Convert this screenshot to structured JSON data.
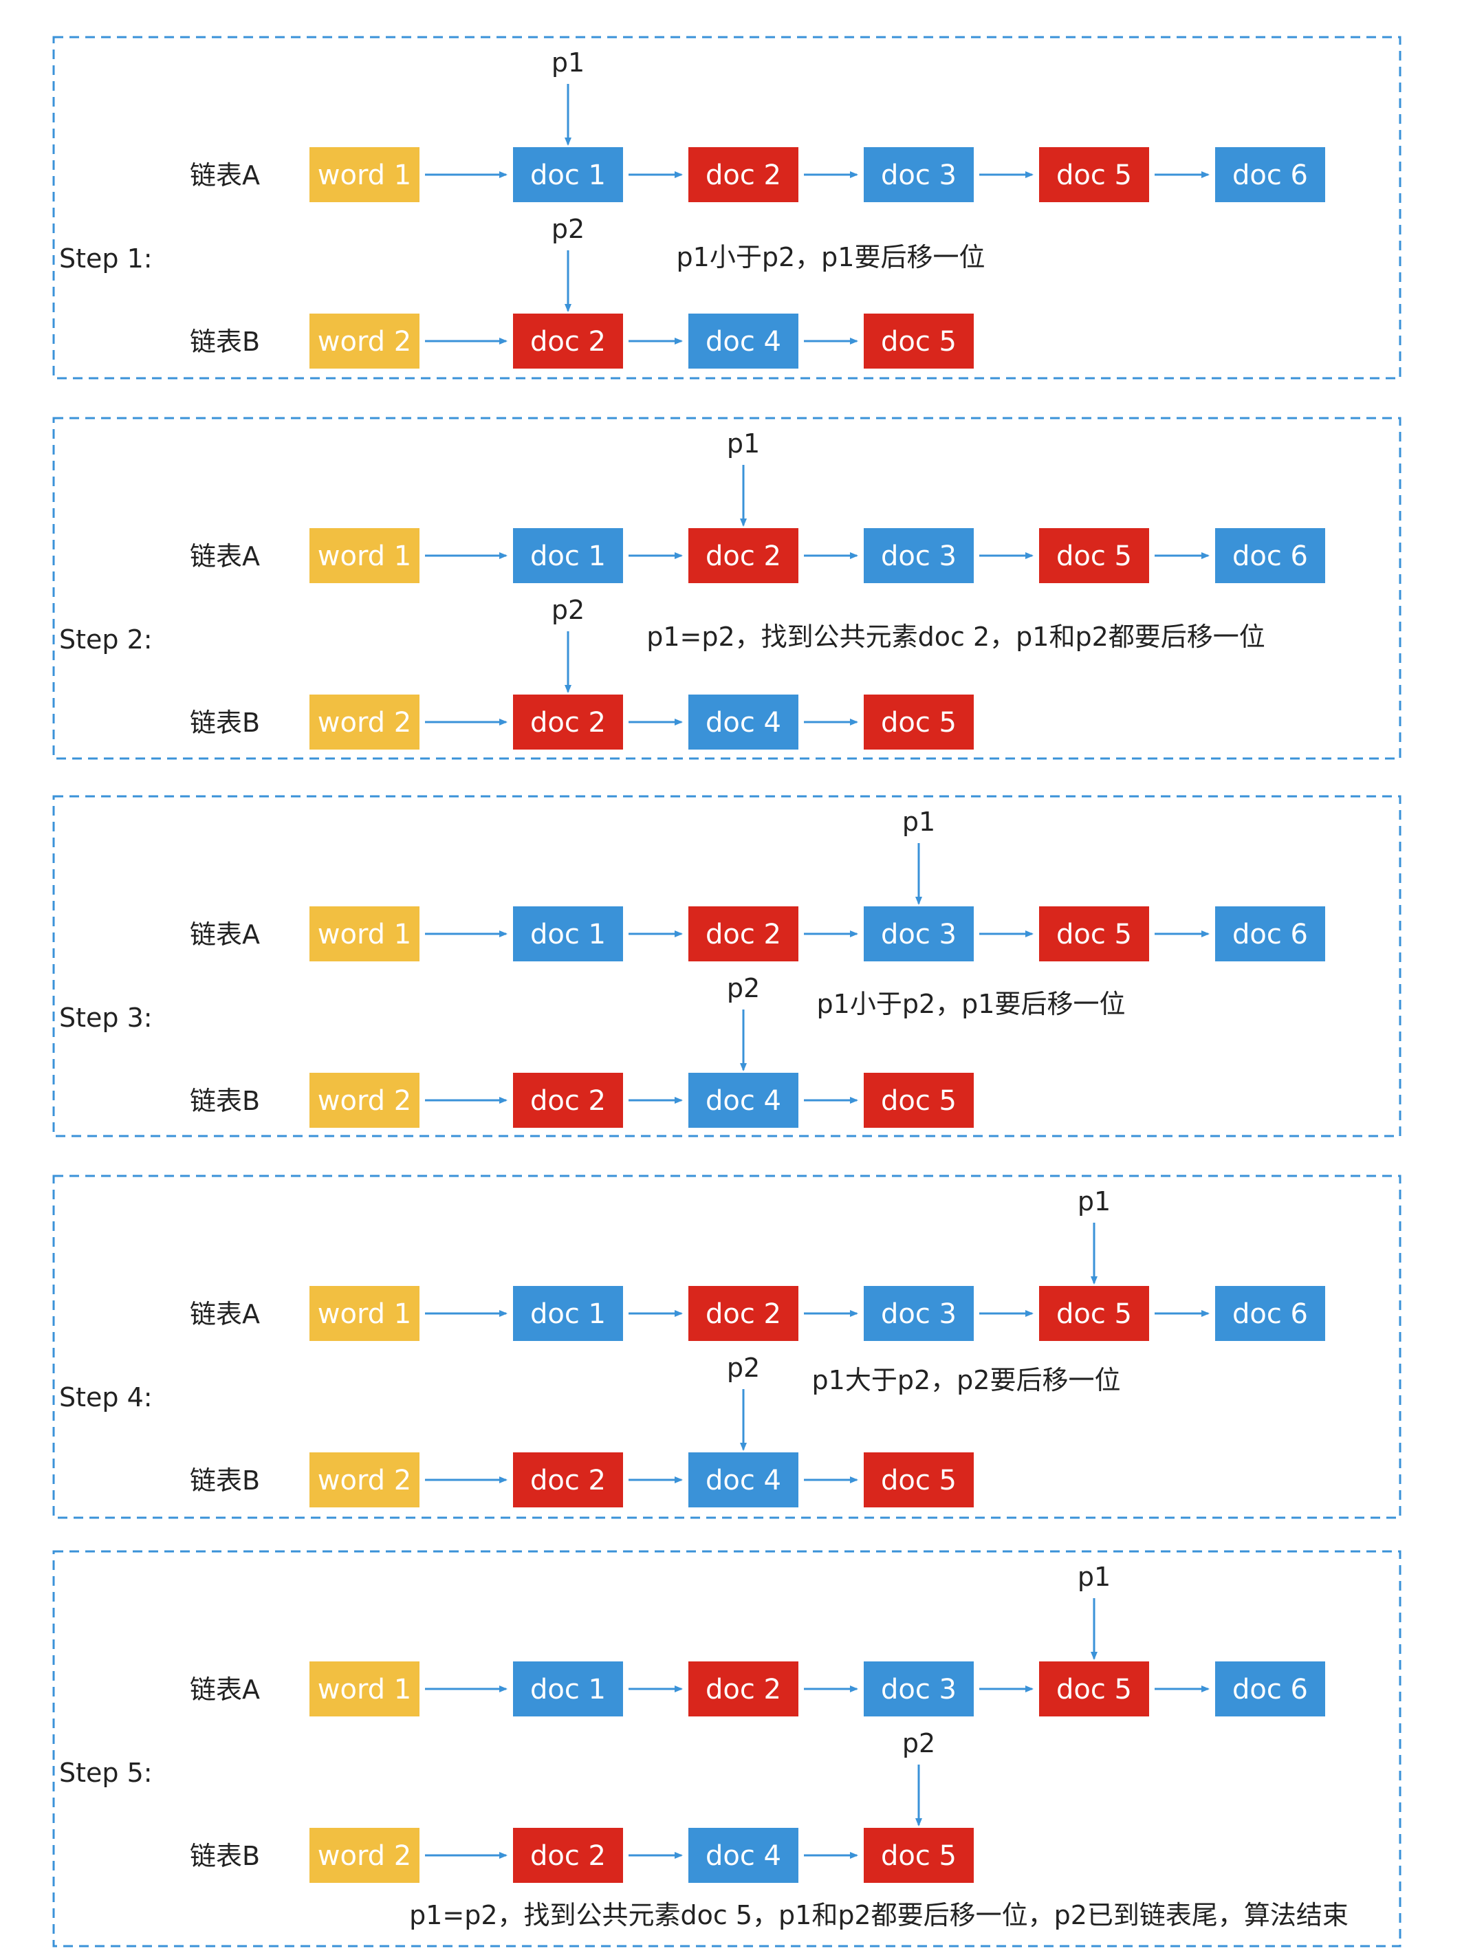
{
  "colors": {
    "word": "#F2BF41",
    "blue": "#3A92D8",
    "red": "#D9261C",
    "arrow": "#3A92D8",
    "border": "#3A92D8",
    "text": "#222222",
    "node_text": "#FFFFFF"
  },
  "steps": [
    {
      "label": "Step 1:",
      "note": "p1小于p2，p1要后移一位",
      "listA": {
        "name": "链表A",
        "nodes": [
          "word 1",
          "doc 1",
          "doc 2",
          "doc 3",
          "doc 5",
          "doc 6"
        ]
      },
      "listB": {
        "name": "链表B",
        "nodes": [
          "word 2",
          "doc 2",
          "doc 4",
          "doc 5"
        ]
      },
      "p1": {
        "label": "p1",
        "index": 1
      },
      "p2": {
        "label": "p2",
        "index": 1
      }
    },
    {
      "label": "Step 2:",
      "note": "p1=p2，找到公共元素doc 2，p1和p2都要后移一位",
      "listA": {
        "name": "链表A",
        "nodes": [
          "word 1",
          "doc 1",
          "doc 2",
          "doc 3",
          "doc 5",
          "doc 6"
        ]
      },
      "listB": {
        "name": "链表B",
        "nodes": [
          "word 2",
          "doc 2",
          "doc 4",
          "doc 5"
        ]
      },
      "p1": {
        "label": "p1",
        "index": 2
      },
      "p2": {
        "label": "p2",
        "index": 1
      }
    },
    {
      "label": "Step 3:",
      "note": "p1小于p2，p1要后移一位",
      "listA": {
        "name": "链表A",
        "nodes": [
          "word 1",
          "doc 1",
          "doc 2",
          "doc 3",
          "doc 5",
          "doc 6"
        ]
      },
      "listB": {
        "name": "链表B",
        "nodes": [
          "word 2",
          "doc 2",
          "doc 4",
          "doc 5"
        ]
      },
      "p1": {
        "label": "p1",
        "index": 3
      },
      "p2": {
        "label": "p2",
        "index": 2
      }
    },
    {
      "label": "Step 4:",
      "note": "p1大于p2，p2要后移一位",
      "listA": {
        "name": "链表A",
        "nodes": [
          "word 1",
          "doc 1",
          "doc 2",
          "doc 3",
          "doc 5",
          "doc 6"
        ]
      },
      "listB": {
        "name": "链表B",
        "nodes": [
          "word 2",
          "doc 2",
          "doc 4",
          "doc 5"
        ]
      },
      "p1": {
        "label": "p1",
        "index": 4
      },
      "p2": {
        "label": "p2",
        "index": 2
      }
    },
    {
      "label": "Step 5:",
      "note": "p1=p2，找到公共元素doc 5，p1和p2都要后移一位，p2已到链表尾，算法结束",
      "listA": {
        "name": "链表A",
        "nodes": [
          "word 1",
          "doc 1",
          "doc 2",
          "doc 3",
          "doc 5",
          "doc 6"
        ]
      },
      "listB": {
        "name": "链表B",
        "nodes": [
          "word 2",
          "doc 2",
          "doc 4",
          "doc 5"
        ]
      },
      "p1": {
        "label": "p1",
        "index": 4
      },
      "p2": {
        "label": "p2",
        "index": 3
      }
    }
  ]
}
